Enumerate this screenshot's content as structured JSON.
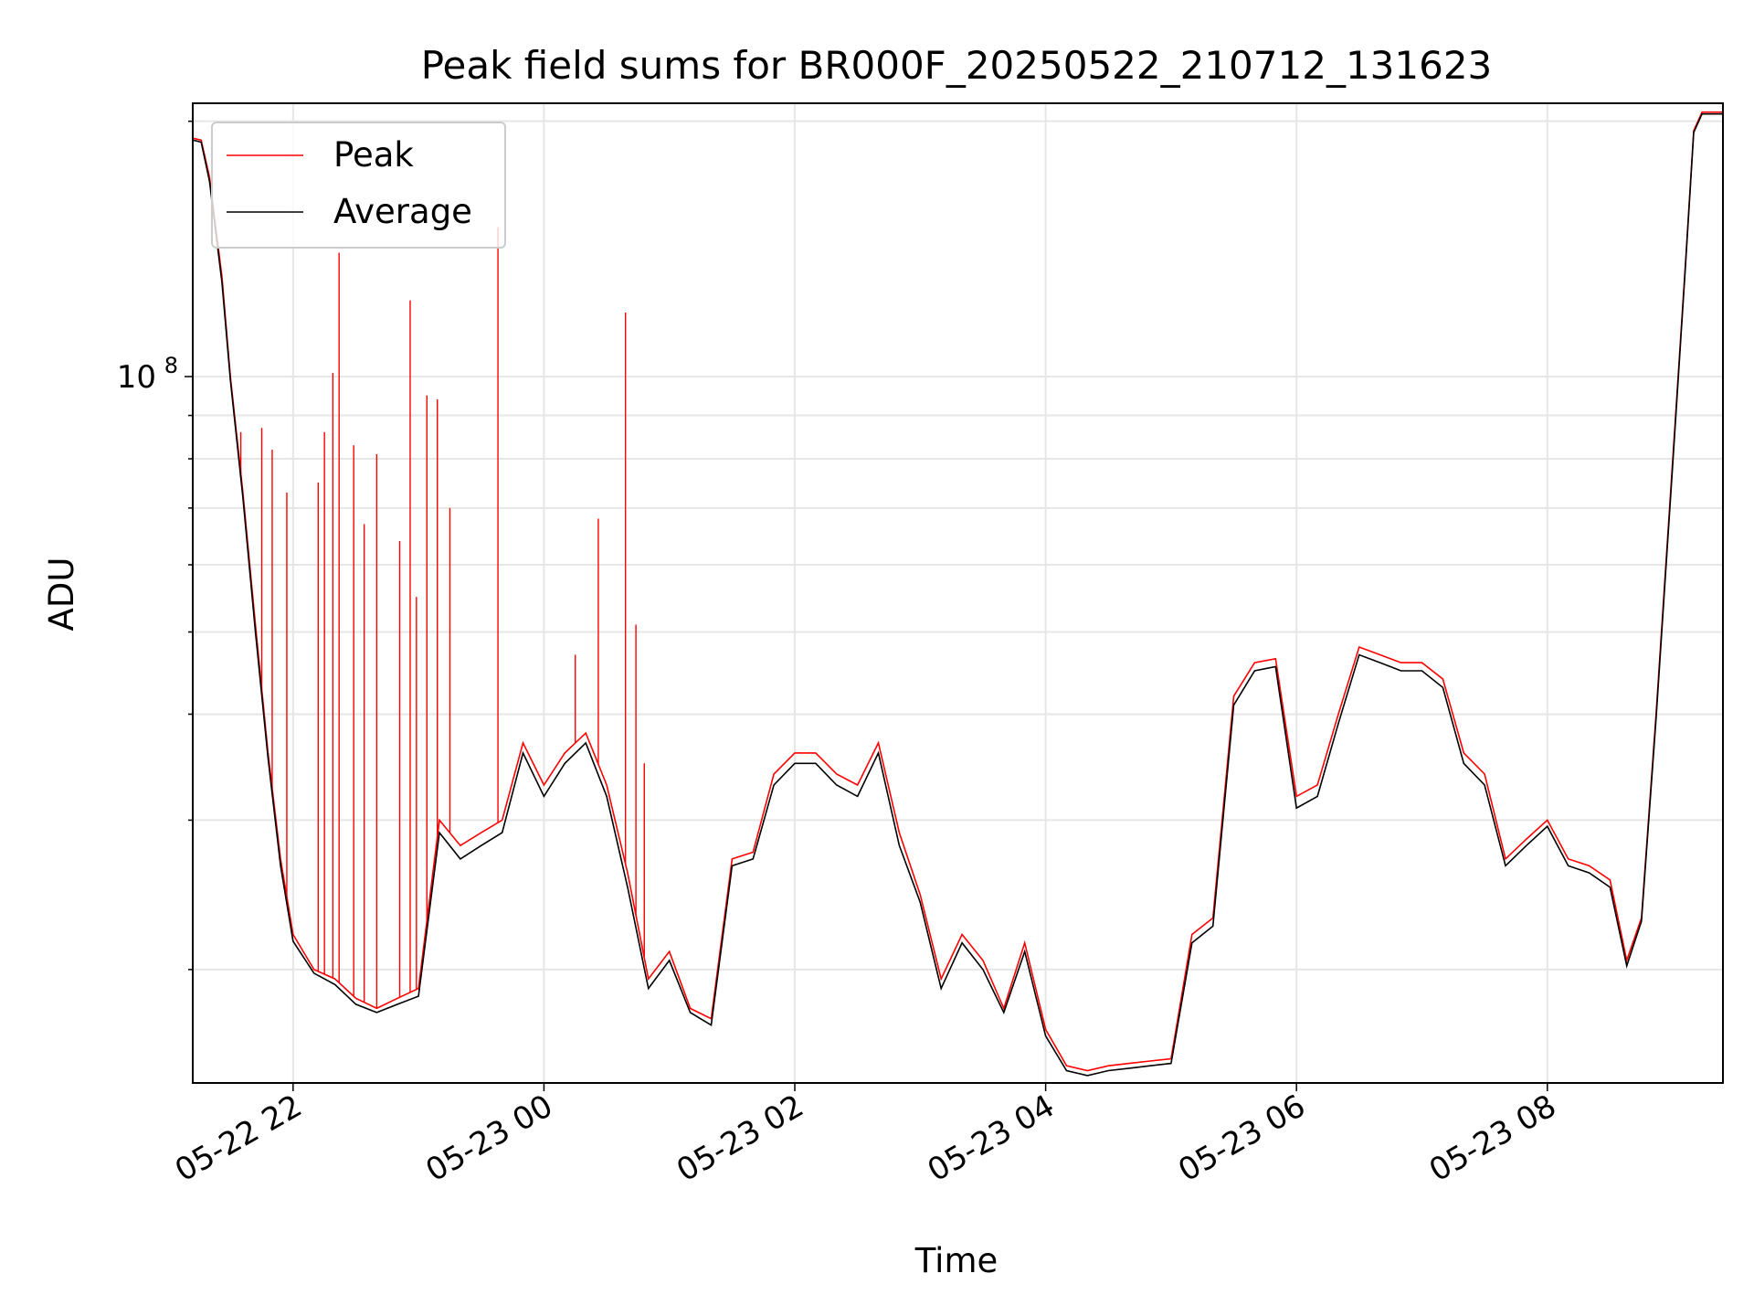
{
  "chart_data": {
    "type": "line",
    "title": "Peak field sums for BR000F_20250522_210712_131623",
    "xlabel": "Time",
    "ylabel": "ADU",
    "x_axis": {
      "type": "datetime",
      "range": [
        "2025-05-22 21:12",
        "2025-05-23 09:24"
      ],
      "ticks": [
        "2025-05-22 22:00",
        "2025-05-23 00:00",
        "2025-05-23 02:00",
        "2025-05-23 04:00",
        "2025-05-23 06:00",
        "2025-05-23 08:00"
      ],
      "tick_labels": [
        "05-22 22",
        "05-23 00",
        "05-23 02",
        "05-23 04",
        "05-23 06",
        "05-23 08"
      ]
    },
    "y_axis": {
      "scale": "log",
      "range": [
        14700000,
        210000000
      ],
      "major_ticks": [
        100000000
      ],
      "major_tick_labels": [
        "10^8"
      ],
      "minor_ticks": [
        20000000,
        30000000,
        40000000,
        50000000,
        60000000,
        70000000,
        80000000,
        90000000,
        200000000
      ]
    },
    "grid": true,
    "legend": "upper-left",
    "series": [
      {
        "name": "Peak",
        "color": "#ff0000",
        "points": [
          [
            "2025-05-22 21:12",
            191000000
          ],
          [
            "2025-05-22 21:16",
            190000000
          ],
          [
            "2025-05-22 21:20",
            172000000
          ],
          [
            "2025-05-22 21:26",
            131000000
          ],
          [
            "2025-05-22 21:30",
            100000000
          ],
          [
            "2025-05-22 21:36",
            73000000
          ],
          [
            "2025-05-22 21:42",
            51000000
          ],
          [
            "2025-05-22 21:48",
            36000000
          ],
          [
            "2025-05-22 21:54",
            27000000
          ],
          [
            "2025-05-22 22:00",
            22000000
          ],
          [
            "2025-05-22 22:10",
            20000000
          ],
          [
            "2025-05-22 22:20",
            19500000
          ],
          [
            "2025-05-22 22:30",
            18500000
          ],
          [
            "2025-05-22 22:40",
            18000000
          ],
          [
            "2025-05-22 22:50",
            18500000
          ],
          [
            "2025-05-22 23:00",
            19000000
          ],
          [
            "2025-05-22 23:10",
            30000000
          ],
          [
            "2025-05-22 23:20",
            28000000
          ],
          [
            "2025-05-22 23:30",
            29000000
          ],
          [
            "2025-05-22 23:40",
            30000000
          ],
          [
            "2025-05-22 23:50",
            37000000
          ],
          [
            "2025-05-23 00:00",
            33000000
          ],
          [
            "2025-05-23 00:10",
            36000000
          ],
          [
            "2025-05-23 00:20",
            38000000
          ],
          [
            "2025-05-23 00:30",
            33000000
          ],
          [
            "2025-05-23 00:40",
            26000000
          ],
          [
            "2025-05-23 00:50",
            19500000
          ],
          [
            "2025-05-23 01:00",
            21000000
          ],
          [
            "2025-05-23 01:10",
            18000000
          ],
          [
            "2025-05-23 01:20",
            17500000
          ],
          [
            "2025-05-23 01:30",
            27000000
          ],
          [
            "2025-05-23 01:40",
            27500000
          ],
          [
            "2025-05-23 01:50",
            34000000
          ],
          [
            "2025-05-23 02:00",
            36000000
          ],
          [
            "2025-05-23 02:10",
            36000000
          ],
          [
            "2025-05-23 02:20",
            34000000
          ],
          [
            "2025-05-23 02:30",
            33000000
          ],
          [
            "2025-05-23 02:40",
            37000000
          ],
          [
            "2025-05-23 02:50",
            29000000
          ],
          [
            "2025-05-23 03:00",
            24500000
          ],
          [
            "2025-05-23 03:10",
            19500000
          ],
          [
            "2025-05-23 03:20",
            22000000
          ],
          [
            "2025-05-23 03:30",
            20500000
          ],
          [
            "2025-05-23 03:40",
            18000000
          ],
          [
            "2025-05-23 03:50",
            21500000
          ],
          [
            "2025-05-23 04:00",
            17000000
          ],
          [
            "2025-05-23 04:10",
            15400000
          ],
          [
            "2025-05-23 04:20",
            15200000
          ],
          [
            "2025-05-23 04:30",
            15400000
          ],
          [
            "2025-05-23 04:40",
            15500000
          ],
          [
            "2025-05-23 04:50",
            15600000
          ],
          [
            "2025-05-23 05:00",
            15700000
          ],
          [
            "2025-05-23 05:10",
            22000000
          ],
          [
            "2025-05-23 05:20",
            23000000
          ],
          [
            "2025-05-23 05:30",
            42000000
          ],
          [
            "2025-05-23 05:40",
            46000000
          ],
          [
            "2025-05-23 05:50",
            46500000
          ],
          [
            "2025-05-23 06:00",
            32000000
          ],
          [
            "2025-05-23 06:10",
            33000000
          ],
          [
            "2025-05-23 06:20",
            40000000
          ],
          [
            "2025-05-23 06:30",
            48000000
          ],
          [
            "2025-05-23 06:40",
            47000000
          ],
          [
            "2025-05-23 06:50",
            46000000
          ],
          [
            "2025-05-23 07:00",
            46000000
          ],
          [
            "2025-05-23 07:10",
            44000000
          ],
          [
            "2025-05-23 07:20",
            36000000
          ],
          [
            "2025-05-23 07:30",
            34000000
          ],
          [
            "2025-05-23 07:40",
            27000000
          ],
          [
            "2025-05-23 07:50",
            28500000
          ],
          [
            "2025-05-23 08:00",
            30000000
          ],
          [
            "2025-05-23 08:10",
            27000000
          ],
          [
            "2025-05-23 08:20",
            26500000
          ],
          [
            "2025-05-23 08:30",
            25500000
          ],
          [
            "2025-05-23 08:38",
            20500000
          ],
          [
            "2025-05-23 08:45",
            23000000
          ],
          [
            "2025-05-23 08:52",
            40000000
          ],
          [
            "2025-05-23 09:00",
            80000000
          ],
          [
            "2025-05-23 09:06",
            135000000
          ],
          [
            "2025-05-23 09:10",
            195000000
          ],
          [
            "2025-05-23 09:14",
            205000000
          ],
          [
            "2025-05-23 09:24",
            205000000
          ]
        ],
        "spikes": [
          [
            "2025-05-22 21:35",
            86000000
          ],
          [
            "2025-05-22 21:45",
            87000000
          ],
          [
            "2025-05-22 21:50",
            82000000
          ],
          [
            "2025-05-22 21:57",
            73000000
          ],
          [
            "2025-05-22 22:12",
            75000000
          ],
          [
            "2025-05-22 22:15",
            86000000
          ],
          [
            "2025-05-22 22:19",
            101000000
          ],
          [
            "2025-05-22 22:22",
            140000000
          ],
          [
            "2025-05-22 22:29",
            83000000
          ],
          [
            "2025-05-22 22:34",
            67000000
          ],
          [
            "2025-05-22 22:40",
            81000000
          ],
          [
            "2025-05-22 22:51",
            64000000
          ],
          [
            "2025-05-22 22:56",
            123000000
          ],
          [
            "2025-05-22 22:59",
            55000000
          ],
          [
            "2025-05-22 23:04",
            95000000
          ],
          [
            "2025-05-22 23:09",
            94000000
          ],
          [
            "2025-05-22 23:15",
            70000000
          ],
          [
            "2025-05-22 23:38",
            150000000
          ],
          [
            "2025-05-23 00:15",
            47000000
          ],
          [
            "2025-05-23 00:26",
            68000000
          ],
          [
            "2025-05-23 00:39",
            119000000
          ],
          [
            "2025-05-23 00:44",
            51000000
          ],
          [
            "2025-05-23 00:48",
            35000000
          ]
        ]
      },
      {
        "name": "Average",
        "color": "#000000",
        "points": [
          [
            "2025-05-22 21:12",
            190000000
          ],
          [
            "2025-05-22 21:16",
            189000000
          ],
          [
            "2025-05-22 21:20",
            170000000
          ],
          [
            "2025-05-22 21:26",
            129000000
          ],
          [
            "2025-05-22 21:30",
            99000000
          ],
          [
            "2025-05-22 21:36",
            72000000
          ],
          [
            "2025-05-22 21:42",
            50000000
          ],
          [
            "2025-05-22 21:48",
            35500000
          ],
          [
            "2025-05-22 21:54",
            26500000
          ],
          [
            "2025-05-22 22:00",
            21600000
          ],
          [
            "2025-05-22 22:10",
            19800000
          ],
          [
            "2025-05-22 22:20",
            19200000
          ],
          [
            "2025-05-22 22:30",
            18200000
          ],
          [
            "2025-05-22 22:40",
            17800000
          ],
          [
            "2025-05-22 22:50",
            18200000
          ],
          [
            "2025-05-22 23:00",
            18600000
          ],
          [
            "2025-05-22 23:10",
            29000000
          ],
          [
            "2025-05-22 23:20",
            27000000
          ],
          [
            "2025-05-22 23:30",
            28000000
          ],
          [
            "2025-05-22 23:40",
            29000000
          ],
          [
            "2025-05-22 23:50",
            36000000
          ],
          [
            "2025-05-23 00:00",
            32000000
          ],
          [
            "2025-05-23 00:10",
            35000000
          ],
          [
            "2025-05-23 00:20",
            37000000
          ],
          [
            "2025-05-23 00:30",
            32000000
          ],
          [
            "2025-05-23 00:40",
            25000000
          ],
          [
            "2025-05-23 00:50",
            19000000
          ],
          [
            "2025-05-23 01:00",
            20500000
          ],
          [
            "2025-05-23 01:10",
            17800000
          ],
          [
            "2025-05-23 01:20",
            17200000
          ],
          [
            "2025-05-23 01:30",
            26500000
          ],
          [
            "2025-05-23 01:40",
            27000000
          ],
          [
            "2025-05-23 01:50",
            33000000
          ],
          [
            "2025-05-23 02:00",
            35000000
          ],
          [
            "2025-05-23 02:10",
            35000000
          ],
          [
            "2025-05-23 02:20",
            33000000
          ],
          [
            "2025-05-23 02:30",
            32000000
          ],
          [
            "2025-05-23 02:40",
            36000000
          ],
          [
            "2025-05-23 02:50",
            28000000
          ],
          [
            "2025-05-23 03:00",
            24000000
          ],
          [
            "2025-05-23 03:10",
            19000000
          ],
          [
            "2025-05-23 03:20",
            21500000
          ],
          [
            "2025-05-23 03:30",
            20000000
          ],
          [
            "2025-05-23 03:40",
            17800000
          ],
          [
            "2025-05-23 03:50",
            21000000
          ],
          [
            "2025-05-23 04:00",
            16700000
          ],
          [
            "2025-05-23 04:10",
            15200000
          ],
          [
            "2025-05-23 04:20",
            15000000
          ],
          [
            "2025-05-23 04:30",
            15200000
          ],
          [
            "2025-05-23 04:40",
            15300000
          ],
          [
            "2025-05-23 04:50",
            15400000
          ],
          [
            "2025-05-23 05:00",
            15500000
          ],
          [
            "2025-05-23 05:10",
            21500000
          ],
          [
            "2025-05-23 05:20",
            22500000
          ],
          [
            "2025-05-23 05:30",
            41000000
          ],
          [
            "2025-05-23 05:40",
            45000000
          ],
          [
            "2025-05-23 05:50",
            45500000
          ],
          [
            "2025-05-23 06:00",
            31000000
          ],
          [
            "2025-05-23 06:10",
            32000000
          ],
          [
            "2025-05-23 06:20",
            39000000
          ],
          [
            "2025-05-23 06:30",
            47000000
          ],
          [
            "2025-05-23 06:40",
            46000000
          ],
          [
            "2025-05-23 06:50",
            45000000
          ],
          [
            "2025-05-23 07:00",
            45000000
          ],
          [
            "2025-05-23 07:10",
            43000000
          ],
          [
            "2025-05-23 07:20",
            35000000
          ],
          [
            "2025-05-23 07:30",
            33000000
          ],
          [
            "2025-05-23 07:40",
            26500000
          ],
          [
            "2025-05-23 07:50",
            28000000
          ],
          [
            "2025-05-23 08:00",
            29500000
          ],
          [
            "2025-05-23 08:10",
            26500000
          ],
          [
            "2025-05-23 08:20",
            26000000
          ],
          [
            "2025-05-23 08:30",
            25000000
          ],
          [
            "2025-05-23 08:38",
            20200000
          ],
          [
            "2025-05-23 08:45",
            22800000
          ],
          [
            "2025-05-23 08:52",
            39500000
          ],
          [
            "2025-05-23 09:00",
            79000000
          ],
          [
            "2025-05-23 09:06",
            134000000
          ],
          [
            "2025-05-23 09:10",
            194000000
          ],
          [
            "2025-05-23 09:14",
            204000000
          ],
          [
            "2025-05-23 09:24",
            204000000
          ]
        ]
      }
    ]
  }
}
